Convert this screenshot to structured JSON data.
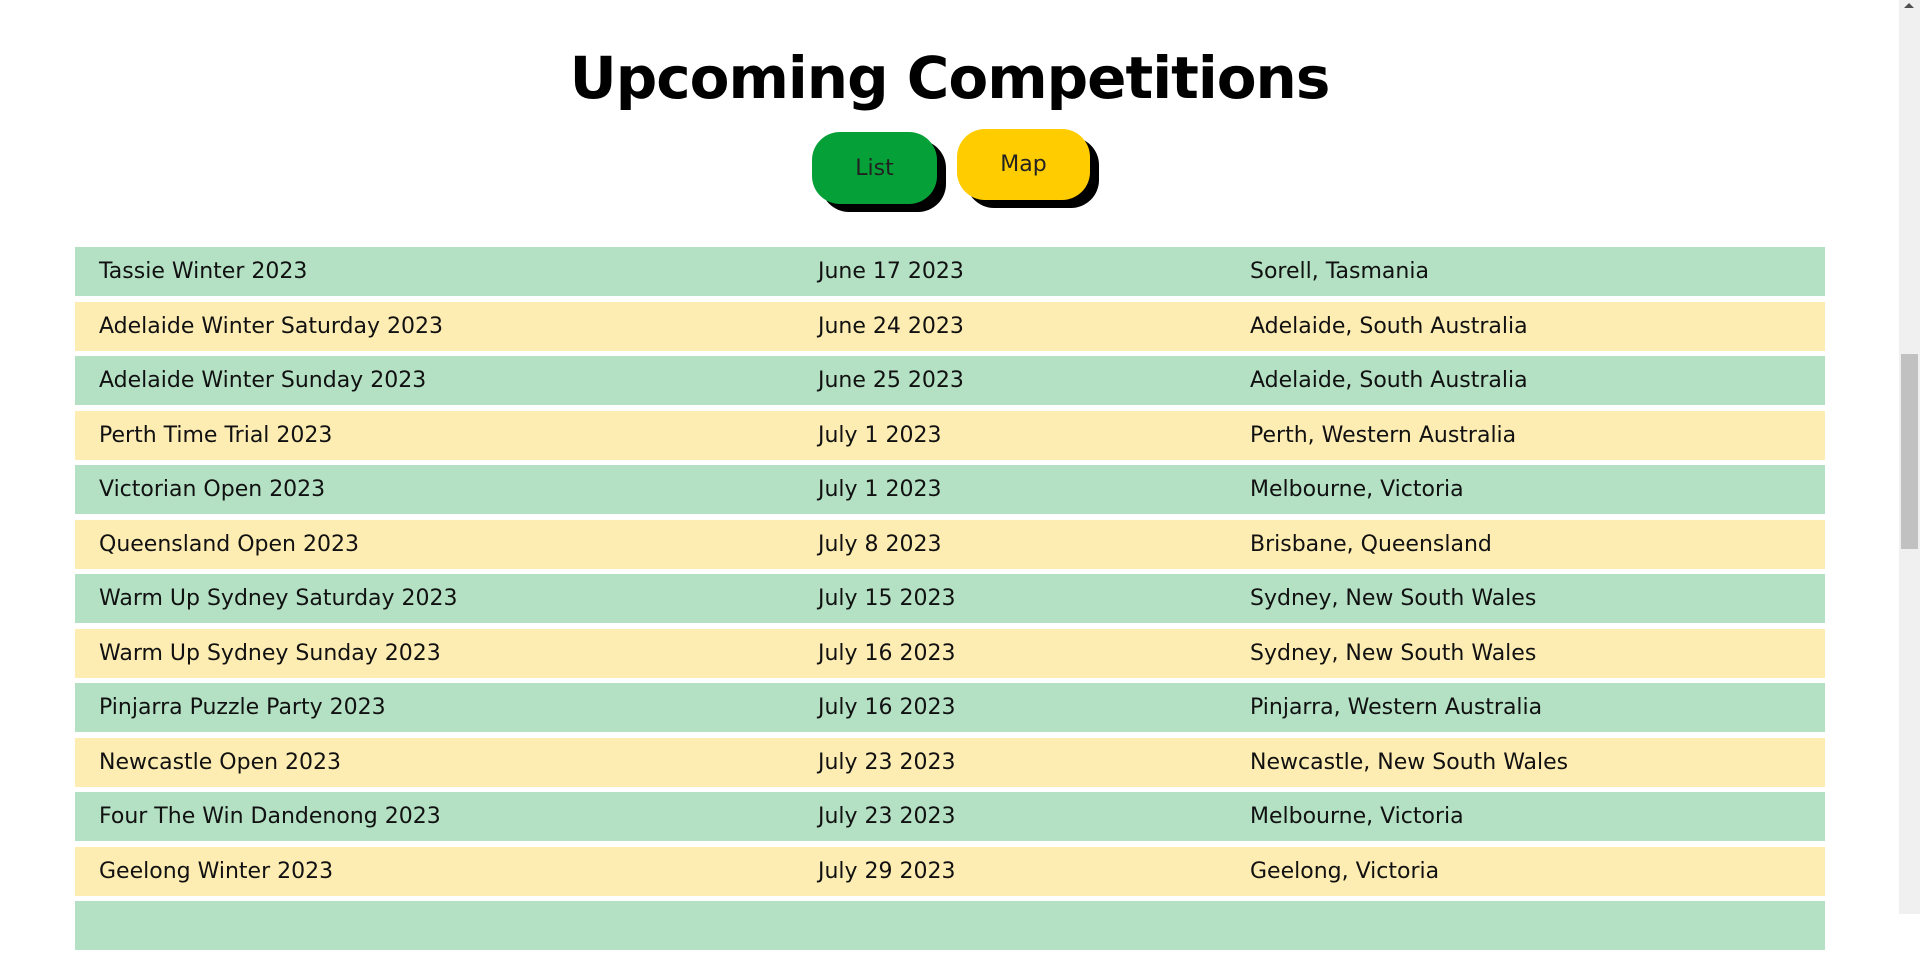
{
  "header": {
    "title": "Upcoming Competitions"
  },
  "view_toggle": {
    "list_label": "List",
    "map_label": "Map"
  },
  "colors": {
    "list_button": "#06a038",
    "map_button": "#ffcc00",
    "row_green": "#b4e1c4",
    "row_yellow": "#feedb3"
  },
  "competitions": [
    {
      "name": "Tassie Winter 2023",
      "date": "June 17 2023",
      "location": "Sorell, Tasmania"
    },
    {
      "name": "Adelaide Winter Saturday 2023",
      "date": "June 24 2023",
      "location": "Adelaide, South Australia"
    },
    {
      "name": "Adelaide Winter Sunday 2023",
      "date": "June 25 2023",
      "location": "Adelaide, South Australia"
    },
    {
      "name": "Perth Time Trial 2023",
      "date": "July 1 2023",
      "location": "Perth, Western Australia"
    },
    {
      "name": "Victorian Open 2023",
      "date": "July 1 2023",
      "location": "Melbourne, Victoria"
    },
    {
      "name": "Queensland Open 2023",
      "date": "July 8 2023",
      "location": "Brisbane, Queensland"
    },
    {
      "name": "Warm Up Sydney Saturday 2023",
      "date": "July 15 2023",
      "location": "Sydney, New South Wales"
    },
    {
      "name": "Warm Up Sydney Sunday 2023",
      "date": "July 16 2023",
      "location": "Sydney, New South Wales"
    },
    {
      "name": "Pinjarra Puzzle Party 2023",
      "date": "July 16 2023",
      "location": "Pinjarra, Western Australia"
    },
    {
      "name": "Newcastle Open 2023",
      "date": "July 23 2023",
      "location": "Newcastle, New South Wales"
    },
    {
      "name": "Four The Win Dandenong 2023",
      "date": "July 23 2023",
      "location": "Melbourne, Victoria"
    },
    {
      "name": "Geelong Winter 2023",
      "date": "July 29 2023",
      "location": "Geelong, Victoria"
    },
    {
      "name": "",
      "date": "",
      "location": ""
    }
  ]
}
